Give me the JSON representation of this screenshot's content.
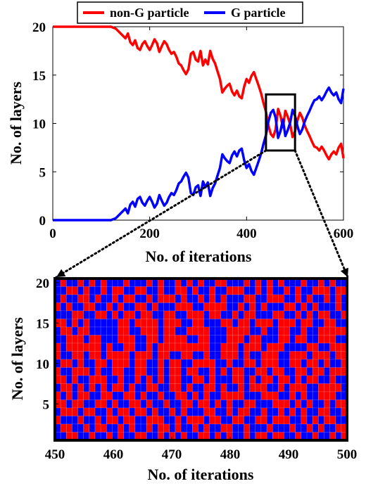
{
  "chart_data": [
    {
      "type": "line",
      "xlabel": "No. of iterations",
      "ylabel": "No. of layers",
      "xlim": [
        0,
        600
      ],
      "ylim": [
        0,
        20
      ],
      "xticks": [
        0,
        200,
        400,
        600
      ],
      "yticks": [
        0,
        5,
        10,
        15,
        20
      ],
      "legend_position": "top",
      "grid": false,
      "inset_box": {
        "x": [
          440,
          500
        ],
        "y": [
          7.2,
          13
        ]
      },
      "series": [
        {
          "name": "non-G particle",
          "color": "#ff0000",
          "points": [
            [
              0,
              20
            ],
            [
              60,
              20
            ],
            [
              120,
              20
            ],
            [
              130,
              19.8
            ],
            [
              140,
              19.3
            ],
            [
              150,
              18.8
            ],
            [
              155,
              19.3
            ],
            [
              160,
              18.4
            ],
            [
              165,
              18.1
            ],
            [
              170,
              18.6
            ],
            [
              175,
              17.8
            ],
            [
              180,
              17.6
            ],
            [
              185,
              18.2
            ],
            [
              190,
              18.5
            ],
            [
              195,
              18
            ],
            [
              200,
              17.6
            ],
            [
              205,
              18.1
            ],
            [
              210,
              18.7
            ],
            [
              215,
              18.3
            ],
            [
              220,
              17.4
            ],
            [
              225,
              18
            ],
            [
              230,
              18.5
            ],
            [
              235,
              18.2
            ],
            [
              240,
              17.6
            ],
            [
              245,
              17.2
            ],
            [
              250,
              17.4
            ],
            [
              255,
              16.9
            ],
            [
              260,
              16.2
            ],
            [
              265,
              16
            ],
            [
              270,
              15.5
            ],
            [
              275,
              15.1
            ],
            [
              280,
              15.6
            ],
            [
              285,
              17.2
            ],
            [
              290,
              17.4
            ],
            [
              295,
              16.6
            ],
            [
              300,
              16.4
            ],
            [
              305,
              17.5
            ],
            [
              310,
              16
            ],
            [
              315,
              16.6
            ],
            [
              320,
              16.1
            ],
            [
              325,
              17.5
            ],
            [
              330,
              16.7
            ],
            [
              335,
              16.2
            ],
            [
              340,
              15.4
            ],
            [
              345,
              14.6
            ],
            [
              350,
              13.2
            ],
            [
              355,
              13.6
            ],
            [
              360,
              13.9
            ],
            [
              365,
              14.1
            ],
            [
              370,
              13.3
            ],
            [
              375,
              12.9
            ],
            [
              380,
              13.4
            ],
            [
              385,
              12.8
            ],
            [
              390,
              12.6
            ],
            [
              395,
              13.8
            ],
            [
              400,
              14.6
            ],
            [
              405,
              14.2
            ],
            [
              410,
              14.9
            ],
            [
              415,
              15.3
            ],
            [
              420,
              14.6
            ],
            [
              425,
              13.9
            ],
            [
              430,
              13.1
            ],
            [
              435,
              12.1
            ],
            [
              440,
              11.2
            ],
            [
              445,
              9.8
            ],
            [
              450,
              8.9
            ],
            [
              455,
              8.6
            ],
            [
              460,
              9.4
            ],
            [
              465,
              11.5
            ],
            [
              470,
              10.8
            ],
            [
              475,
              9.6
            ],
            [
              480,
              11.3
            ],
            [
              485,
              10.7
            ],
            [
              490,
              9.9
            ],
            [
              495,
              8.6
            ],
            [
              500,
              9.2
            ],
            [
              505,
              10.3
            ],
            [
              510,
              11.1
            ],
            [
              515,
              10.6
            ],
            [
              520,
              9.8
            ],
            [
              525,
              9.2
            ],
            [
              530,
              8.7
            ],
            [
              535,
              8.1
            ],
            [
              540,
              7.6
            ],
            [
              545,
              7.5
            ],
            [
              550,
              7.2
            ],
            [
              555,
              7.6
            ],
            [
              560,
              7.2
            ],
            [
              565,
              6.7
            ],
            [
              570,
              6.3
            ],
            [
              575,
              6.8
            ],
            [
              580,
              7.1
            ],
            [
              585,
              6.8
            ],
            [
              590,
              7.5
            ],
            [
              595,
              7.9
            ],
            [
              600,
              6.4
            ]
          ]
        },
        {
          "name": "G particle",
          "color": "#0000ff",
          "points": [
            [
              0,
              0
            ],
            [
              60,
              0
            ],
            [
              120,
              0
            ],
            [
              130,
              0.2
            ],
            [
              140,
              0.7
            ],
            [
              150,
              1.2
            ],
            [
              155,
              0.7
            ],
            [
              160,
              1.6
            ],
            [
              165,
              1.9
            ],
            [
              170,
              1.4
            ],
            [
              175,
              2.2
            ],
            [
              180,
              2.4
            ],
            [
              185,
              1.8
            ],
            [
              190,
              1.5
            ],
            [
              195,
              2
            ],
            [
              200,
              2.4
            ],
            [
              205,
              1.9
            ],
            [
              210,
              1.3
            ],
            [
              215,
              1.7
            ],
            [
              220,
              2.6
            ],
            [
              225,
              2
            ],
            [
              230,
              1.5
            ],
            [
              235,
              1.8
            ],
            [
              240,
              2.4
            ],
            [
              245,
              2.8
            ],
            [
              250,
              2.6
            ],
            [
              255,
              3.1
            ],
            [
              260,
              3.8
            ],
            [
              265,
              4
            ],
            [
              270,
              4.5
            ],
            [
              275,
              4.9
            ],
            [
              280,
              4.4
            ],
            [
              285,
              2.8
            ],
            [
              290,
              2.6
            ],
            [
              295,
              3.4
            ],
            [
              300,
              3.6
            ],
            [
              305,
              2.5
            ],
            [
              310,
              4
            ],
            [
              315,
              3.4
            ],
            [
              320,
              3.9
            ],
            [
              325,
              2.5
            ],
            [
              330,
              3.3
            ],
            [
              335,
              3.8
            ],
            [
              340,
              4.6
            ],
            [
              345,
              5.4
            ],
            [
              350,
              6.8
            ],
            [
              355,
              6.4
            ],
            [
              360,
              6.1
            ],
            [
              365,
              5.9
            ],
            [
              370,
              6.7
            ],
            [
              375,
              7.1
            ],
            [
              380,
              6.6
            ],
            [
              385,
              7.2
            ],
            [
              390,
              7.4
            ],
            [
              395,
              6.2
            ],
            [
              400,
              5.4
            ],
            [
              405,
              5.8
            ],
            [
              410,
              5.1
            ],
            [
              415,
              4.7
            ],
            [
              420,
              5.4
            ],
            [
              425,
              6.1
            ],
            [
              430,
              6.9
            ],
            [
              435,
              7.9
            ],
            [
              440,
              8.8
            ],
            [
              445,
              10.2
            ],
            [
              450,
              11.1
            ],
            [
              455,
              11.4
            ],
            [
              460,
              10.6
            ],
            [
              465,
              8.5
            ],
            [
              470,
              9.2
            ],
            [
              475,
              10.4
            ],
            [
              480,
              8.7
            ],
            [
              485,
              9.3
            ],
            [
              490,
              10.1
            ],
            [
              495,
              11.4
            ],
            [
              500,
              10.8
            ],
            [
              505,
              9.7
            ],
            [
              510,
              8.9
            ],
            [
              515,
              9.4
            ],
            [
              520,
              10.2
            ],
            [
              525,
              10.8
            ],
            [
              530,
              11.3
            ],
            [
              535,
              11.9
            ],
            [
              540,
              12.4
            ],
            [
              545,
              12.5
            ],
            [
              550,
              12.8
            ],
            [
              555,
              12.4
            ],
            [
              560,
              12.8
            ],
            [
              565,
              13.3
            ],
            [
              570,
              13.7
            ],
            [
              575,
              13.2
            ],
            [
              580,
              12.9
            ],
            [
              585,
              13.2
            ],
            [
              590,
              12.5
            ],
            [
              595,
              12.1
            ],
            [
              600,
              13.6
            ]
          ]
        }
      ]
    },
    {
      "type": "heatmap",
      "xlabel": "No. of iterations",
      "ylabel": "No. of layers",
      "xlim": [
        450,
        500
      ],
      "ylim": [
        1,
        20
      ],
      "xticks": [
        450,
        460,
        470,
        480,
        490,
        500
      ],
      "yticks": [
        5,
        10,
        15,
        20
      ],
      "colors": {
        "non-G particle": "#ff0000",
        "G particle": "#0000ff"
      },
      "cell_encoding": "1 = G particle (blue), 0 = non-G particle (red); rows listed from layer 20 down to layer 1, columns = iterations 450..500",
      "rows": [
        "101101010111011101011010101100111010101011101101011",
        "110010110100110011011001011011000110101101011000100",
        "101100101101001101000101101010111001100011010110101",
        "010110011010110010111000110000110101011100101011101",
        "111001100101001001100110001001101001110011010100110",
        "001010111110010000100011001110010010001000100110011",
        "100100111110011000100110000111000011011001101100000",
        "110001001110001100100001100111000100111001001100011",
        "010000001011001101000000000110001000100011110011000",
        "011001001000010001001100110110001011000110001000100",
        "100101100100010011010011000011011001000110010010110",
        "011000101100110011010010011010100110010011001001000",
        "001011000110110101010011001011100101001001010011011",
        "100101010100101100110010110010110100011010001100001",
        "010100110011001011011001010110000111000110101100011",
        "001001100101100101101100100101011001110001010110100",
        "100010011010010010110101110011010011011010101100110",
        "011101101001001100011010001001100110010001101010011",
        "100110100110101101001011010110011011101110110101100",
        "110011011010110011010101100101011010010011011011010"
      ]
    }
  ]
}
